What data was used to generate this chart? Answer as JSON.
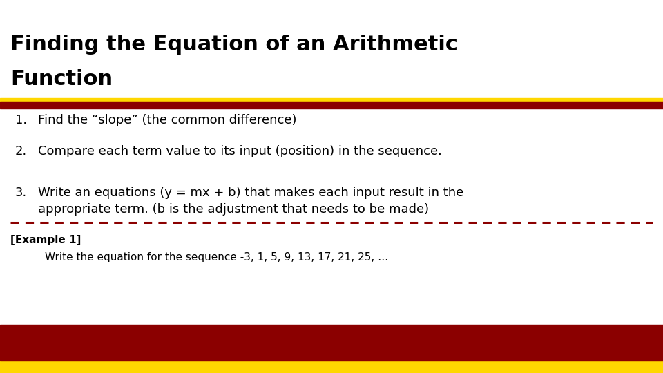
{
  "title_line1": "Finding the Equation of an Arithmetic",
  "title_line2": "Function",
  "title_fontsize": 22,
  "title_color": "#000000",
  "items": [
    "Find the “slope” (the common difference)",
    "Compare each term value to its input (position) in the sequence.",
    "Write an equations (y = mx + b) that makes each input result in the\nappropriate term. (b is the adjustment that needs to be made)"
  ],
  "item_fontsize": 13,
  "item_color": "#000000",
  "dashed_line_color": "#8B0000",
  "example_label": "[Example 1]",
  "example_label_fontsize": 11,
  "example_text": "Write the equation for the sequence -3, 1, 5, 9, 13, 17, 21, 25, …",
  "example_fontsize": 11,
  "bg_color": "#FFFFFF",
  "footer_gold_color": "#FFD700",
  "footer_red_color": "#8B0000",
  "title_sep_gold_color": "#FFD700",
  "title_sep_red_color": "#8B0000"
}
